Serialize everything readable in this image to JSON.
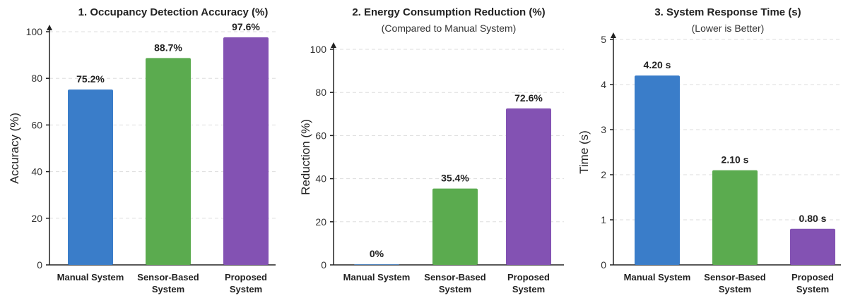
{
  "chart_data": [
    {
      "type": "bar",
      "title": "1. Occupancy Detection Accuracy (%)",
      "subtitle": "",
      "ylabel": "Accuracy (%)",
      "xlabel": "",
      "ylim": [
        0,
        100
      ],
      "yticks": [
        0,
        20,
        40,
        60,
        80,
        100
      ],
      "tick_labels": [
        "0",
        "20",
        "40",
        "60",
        "80",
        "100"
      ],
      "grid": true,
      "categories": [
        [
          "Manual System"
        ],
        [
          "Sensor-Based",
          "System"
        ],
        [
          "Proposed",
          "System"
        ]
      ],
      "values": [
        75.2,
        88.7,
        97.6
      ],
      "value_labels": [
        "75.2%",
        "88.7%",
        "97.6%"
      ],
      "colors": [
        "#3a7dc9",
        "#5bab4f",
        "#8352b3"
      ]
    },
    {
      "type": "bar",
      "title": "2. Energy Consumption Reduction (%)",
      "subtitle": "(Compared to Manual System)",
      "ylabel": "Reduction (%)",
      "xlabel": "",
      "ylim": [
        0,
        100
      ],
      "yticks": [
        0,
        20,
        40,
        60,
        80,
        100
      ],
      "tick_labels": [
        "0",
        "20",
        "40",
        "60",
        "80",
        "100"
      ],
      "grid": true,
      "categories": [
        [
          "Manual System"
        ],
        [
          "Sensor-Based",
          "System"
        ],
        [
          "Proposed",
          "System"
        ]
      ],
      "values": [
        0,
        35.4,
        72.6
      ],
      "value_labels": [
        "0%",
        "35.4%",
        "72.6%"
      ],
      "colors": [
        "#3a7dc9",
        "#5bab4f",
        "#8352b3"
      ]
    },
    {
      "type": "bar",
      "title": "3. System Response Time (s)",
      "subtitle": "(Lower is Better)",
      "ylabel": "Time (s)",
      "xlabel": "",
      "ylim": [
        0,
        5
      ],
      "yticks": [
        0,
        1,
        2,
        3,
        4,
        5
      ],
      "tick_labels": [
        "0",
        "1",
        "2",
        "3",
        "4",
        "5"
      ],
      "grid": true,
      "categories": [
        [
          "Manual System"
        ],
        [
          "Sensor-Based",
          "System"
        ],
        [
          "Proposed",
          "System"
        ]
      ],
      "values": [
        4.2,
        2.1,
        0.8
      ],
      "value_labels": [
        "4.20 s",
        "2.10 s",
        "0.80 s"
      ],
      "colors": [
        "#3a7dc9",
        "#5bab4f",
        "#8352b3"
      ]
    }
  ]
}
